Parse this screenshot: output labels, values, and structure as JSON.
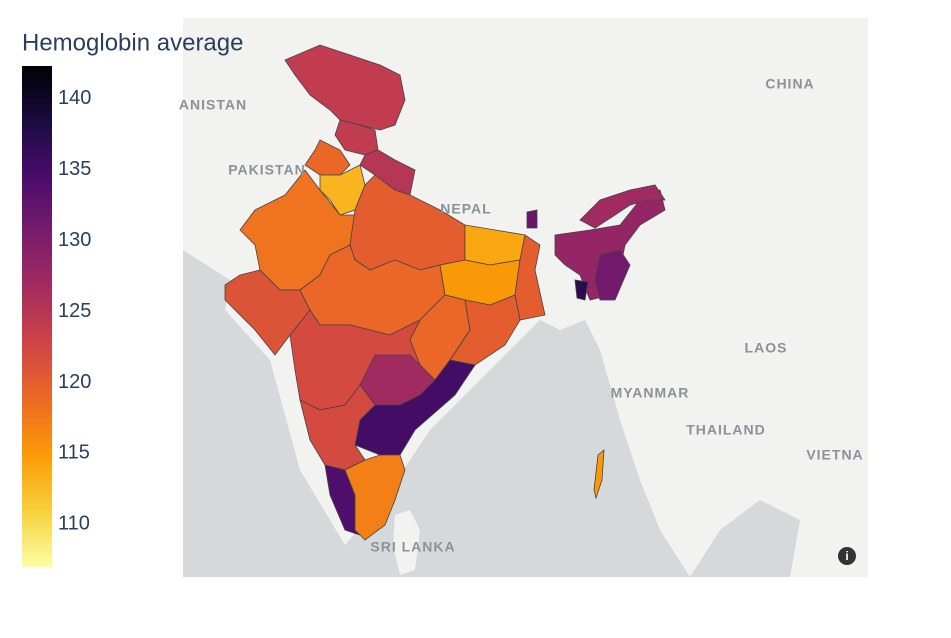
{
  "chart_data": {
    "type": "choropleth",
    "title": "Hemoglobin average",
    "values": [
      124,
      124,
      125,
      119,
      113,
      118,
      120,
      114,
      121,
      119,
      115,
      120,
      119,
      120,
      122,
      127,
      135,
      122,
      134,
      117,
      128,
      127,
      131,
      137,
      132,
      115
    ],
    "clim": [
      107,
      142.3
    ],
    "cticks": [
      110,
      115,
      120,
      125,
      130,
      135,
      140
    ],
    "colorscale": [
      "#fcffa4",
      "#f7d13d",
      "#fb9b06",
      "#ed6925",
      "#cf4446",
      "#a52c60",
      "#781c6d",
      "#4a0c6b",
      "#1b0c41",
      "#000004"
    ],
    "map_labels": [
      "CHINA",
      "PAKISTAN",
      "ANISTAN",
      "NEPAL",
      "LAOS",
      "MYANMAR",
      "THAILAND",
      "VIETNA",
      "SRI LANKA"
    ]
  }
}
